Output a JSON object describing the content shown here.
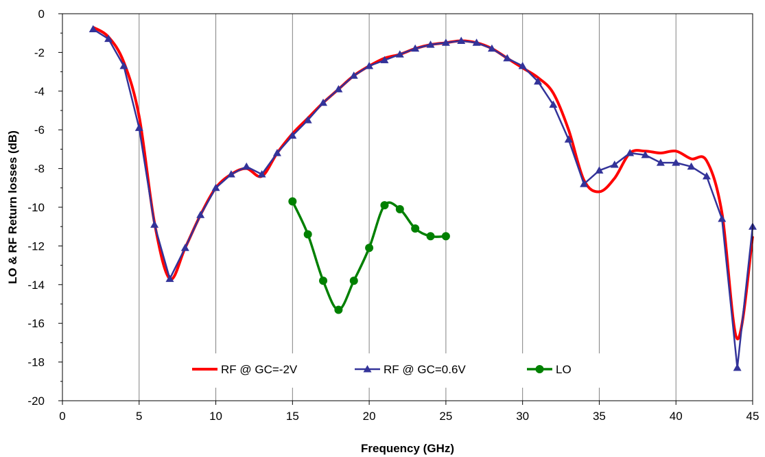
{
  "chart_data": {
    "type": "line",
    "xlabel": "Frequency (GHz)",
    "ylabel": "LO & RF Return losses (dB)",
    "xlim": [
      0,
      45
    ],
    "ylim": [
      -20,
      0
    ],
    "xticks": [
      0,
      5,
      10,
      15,
      20,
      25,
      30,
      35,
      40,
      45
    ],
    "yticks": [
      0,
      -2,
      -4,
      -6,
      -8,
      -10,
      -12,
      -14,
      -16,
      -18,
      -20
    ],
    "grid": "vertical gridlines at every x tick",
    "legend_position": "bottom-center, inside plot",
    "series": [
      {
        "name": "RF @ GC=-2V",
        "color": "#ff0000",
        "marker": "none",
        "smooth": true,
        "x": [
          2,
          3,
          4,
          5,
          6,
          7,
          8,
          9,
          10,
          11,
          12,
          13,
          14,
          15,
          16,
          17,
          18,
          19,
          20,
          21,
          22,
          23,
          24,
          25,
          26,
          27,
          28,
          29,
          30,
          31,
          32,
          33,
          34,
          35,
          36,
          37,
          38,
          39,
          40,
          41,
          42,
          43,
          44,
          45
        ],
        "y": [
          -0.7,
          -1.2,
          -2.5,
          -5.3,
          -10.8,
          -13.7,
          -12.1,
          -10.4,
          -9.0,
          -8.3,
          -8.0,
          -8.4,
          -7.2,
          -6.2,
          -5.4,
          -4.6,
          -3.9,
          -3.2,
          -2.7,
          -2.3,
          -2.1,
          -1.8,
          -1.6,
          -1.5,
          -1.4,
          -1.5,
          -1.8,
          -2.3,
          -2.8,
          -3.3,
          -4.1,
          -6.0,
          -8.6,
          -9.2,
          -8.5,
          -7.2,
          -7.1,
          -7.2,
          -7.1,
          -7.5,
          -7.6,
          -10.3,
          -16.8,
          -11.5
        ]
      },
      {
        "name": "RF @ GC=0.6V",
        "color": "#333399",
        "marker": "triangle",
        "smooth": false,
        "x": [
          2,
          3,
          4,
          5,
          6,
          7,
          8,
          9,
          10,
          11,
          12,
          13,
          14,
          15,
          16,
          17,
          18,
          19,
          20,
          21,
          22,
          23,
          24,
          25,
          26,
          27,
          28,
          29,
          30,
          31,
          32,
          33,
          34,
          35,
          36,
          37,
          38,
          39,
          40,
          41,
          42,
          43,
          44,
          45
        ],
        "y": [
          -0.8,
          -1.3,
          -2.7,
          -5.9,
          -10.9,
          -13.7,
          -12.1,
          -10.4,
          -9.0,
          -8.3,
          -7.9,
          -8.3,
          -7.2,
          -6.3,
          -5.5,
          -4.6,
          -3.9,
          -3.2,
          -2.7,
          -2.4,
          -2.1,
          -1.8,
          -1.6,
          -1.5,
          -1.4,
          -1.5,
          -1.8,
          -2.3,
          -2.7,
          -3.5,
          -4.7,
          -6.5,
          -8.8,
          -8.1,
          -7.8,
          -7.2,
          -7.3,
          -7.7,
          -7.7,
          -7.9,
          -8.4,
          -10.6,
          -18.3,
          -11.0
        ]
      },
      {
        "name": "LO",
        "color": "#008000",
        "marker": "circle",
        "smooth": true,
        "x": [
          15,
          16,
          17,
          18,
          19,
          20,
          21,
          22,
          23,
          24,
          25
        ],
        "y": [
          -9.7,
          -11.4,
          -13.8,
          -15.3,
          -13.8,
          -12.1,
          -9.9,
          -10.1,
          -11.1,
          -11.5,
          -11.5
        ]
      }
    ]
  }
}
